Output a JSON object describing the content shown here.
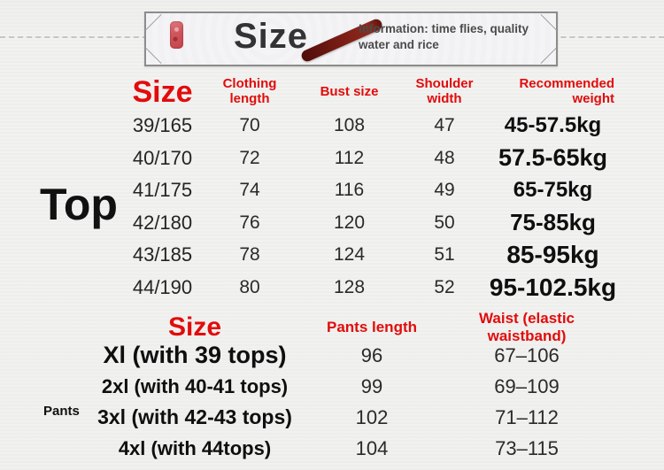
{
  "banner": {
    "title": "Size",
    "info": "Information: time flies, quality\nwater and rice"
  },
  "top_section": {
    "label": "Top",
    "headers": {
      "size": "Size",
      "clothing_length": "Clothing\nlength",
      "bust": "Bust size",
      "shoulder": "Shoulder\nwidth",
      "weight": "Recommended\nweight"
    },
    "rows": [
      {
        "size": "39/165",
        "clothing_length": "70",
        "bust": "108",
        "shoulder": "47",
        "weight": "45-57.5kg"
      },
      {
        "size": "40/170",
        "clothing_length": "72",
        "bust": "112",
        "shoulder": "48",
        "weight": "57.5-65kg"
      },
      {
        "size": "41/175",
        "clothing_length": "74",
        "bust": "116",
        "shoulder": "49",
        "weight": "65-75kg"
      },
      {
        "size": "42/180",
        "clothing_length": "76",
        "bust": "120",
        "shoulder": "50",
        "weight": "75-85kg"
      },
      {
        "size": "43/185",
        "clothing_length": "78",
        "bust": "124",
        "shoulder": "51",
        "weight": "85-95kg"
      },
      {
        "size": "44/190",
        "clothing_length": "80",
        "bust": "128",
        "shoulder": "52",
        "weight": "95-102.5kg"
      }
    ]
  },
  "pants_section": {
    "label": "Pants",
    "headers": {
      "size": "Size",
      "pants_length": "Pants length",
      "waist": "Waist (elastic waistband)"
    },
    "rows": [
      {
        "size": "Xl (with 39 tops)",
        "pants_length": "96",
        "waist": "67–106"
      },
      {
        "size": "2xl (with 40-41 tops)",
        "pants_length": "99",
        "waist": "69–109"
      },
      {
        "size": "3xl (with 42-43 tops)",
        "pants_length": "102",
        "waist": "71–112"
      },
      {
        "size": "4xl (with 44tops)",
        "pants_length": "104",
        "waist": "73–115"
      }
    ]
  },
  "colors": {
    "accent_red": "#e10c0c",
    "text_dark": "#1e1e1e",
    "banner_title_color": "#333333",
    "brush_stroke_color": "#7e1f16",
    "seal_red": "#cf555c"
  }
}
